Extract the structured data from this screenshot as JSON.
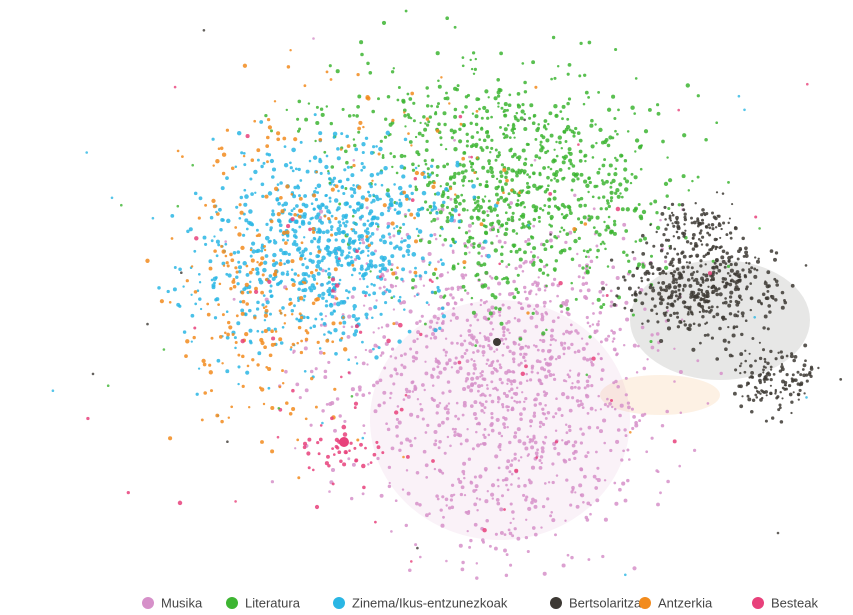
{
  "legend": [
    {
      "name": "Musika",
      "color": "#d690c9"
    },
    {
      "name": "Literatura",
      "color": "#3db532"
    },
    {
      "name": "Zinema/Ikus-entzunezkoak",
      "color": "#2ab6e4"
    },
    {
      "name": "Bertsolaritza",
      "color": "#3d3934"
    },
    {
      "name": "Antzerkia",
      "color": "#f28b1d"
    },
    {
      "name": "Besteak",
      "color": "#e8417b"
    }
  ]
}
